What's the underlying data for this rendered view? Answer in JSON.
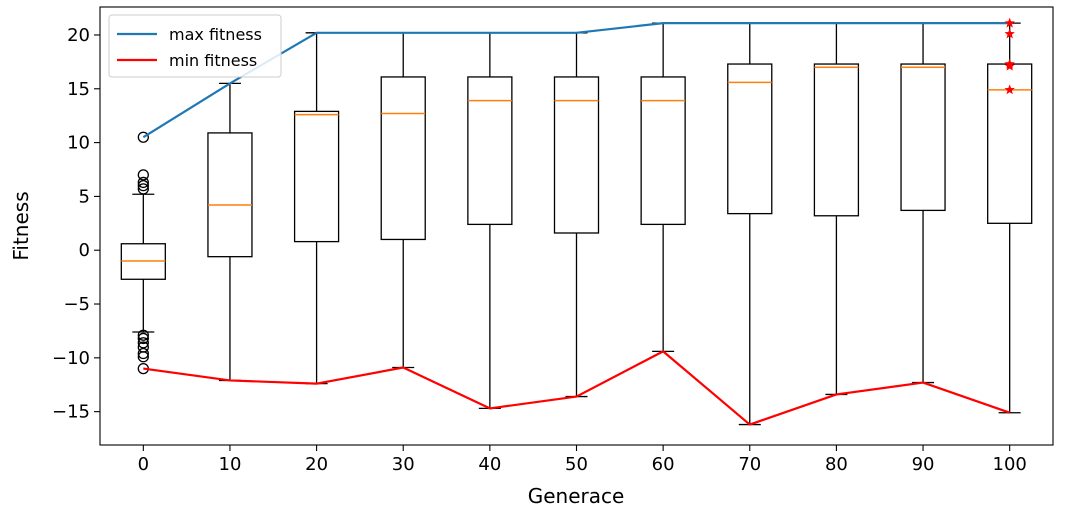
{
  "chart_data": {
    "type": "box",
    "xlabel": "Generace",
    "ylabel": "Fitness",
    "x_ticks": [
      "0",
      "10",
      "20",
      "30",
      "40",
      "50",
      "60",
      "70",
      "80",
      "90",
      "100"
    ],
    "y_ticks": [
      "−15",
      "−10",
      "−5",
      "0",
      "5",
      "10",
      "15",
      "20"
    ],
    "ylim": [
      -18.1,
      22.6
    ],
    "xlim": [
      -5,
      105
    ],
    "legend_position": "top-left",
    "boxes": [
      {
        "x": 0,
        "whisker_low": -7.6,
        "q1": -2.7,
        "median": -1.0,
        "q3": 0.6,
        "whisker_high": 5.2,
        "outliers": [
          -11.0,
          -9.9,
          -9.6,
          -9.0,
          -8.6,
          -8.2,
          -7.9,
          5.7,
          6.0,
          6.3,
          7.0,
          10.5
        ]
      },
      {
        "x": 10,
        "whisker_low": -12.1,
        "q1": -0.6,
        "median": 4.2,
        "q3": 10.9,
        "whisker_high": 15.5,
        "outliers": []
      },
      {
        "x": 20,
        "whisker_low": -12.4,
        "q1": 0.8,
        "median": 12.6,
        "q3": 12.9,
        "whisker_high": 20.2,
        "outliers": []
      },
      {
        "x": 30,
        "whisker_low": -10.9,
        "q1": 1.0,
        "median": 12.7,
        "q3": 16.1,
        "whisker_high": 20.2,
        "outliers": []
      },
      {
        "x": 40,
        "whisker_low": -14.7,
        "q1": 2.4,
        "median": 13.9,
        "q3": 16.1,
        "whisker_high": 20.2,
        "outliers": []
      },
      {
        "x": 50,
        "whisker_low": -13.6,
        "q1": 1.6,
        "median": 13.9,
        "q3": 16.1,
        "whisker_high": 20.2,
        "outliers": []
      },
      {
        "x": 60,
        "whisker_low": -9.4,
        "q1": 2.4,
        "median": 13.9,
        "q3": 16.1,
        "whisker_high": 21.1,
        "outliers": []
      },
      {
        "x": 70,
        "whisker_low": -16.2,
        "q1": 3.4,
        "median": 15.6,
        "q3": 17.3,
        "whisker_high": 21.1,
        "outliers": []
      },
      {
        "x": 80,
        "whisker_low": -13.4,
        "q1": 3.2,
        "median": 17.0,
        "q3": 17.3,
        "whisker_high": 21.1,
        "outliers": []
      },
      {
        "x": 90,
        "whisker_low": -12.3,
        "q1": 3.7,
        "median": 17.0,
        "q3": 17.3,
        "whisker_high": 21.1,
        "outliers": []
      },
      {
        "x": 100,
        "whisker_low": -15.1,
        "q1": 2.5,
        "median": 14.9,
        "q3": 17.3,
        "whisker_high": 21.1,
        "outliers": []
      }
    ],
    "star_markers": {
      "x": 100,
      "values": [
        21.1,
        20.1,
        17.3,
        17.1,
        14.9
      ]
    },
    "series": [
      {
        "name": "max fitness",
        "color": "#1f77b4",
        "x": [
          0,
          10,
          20,
          30,
          40,
          50,
          60,
          70,
          80,
          90,
          100
        ],
        "values": [
          10.5,
          15.5,
          20.2,
          20.2,
          20.2,
          20.2,
          21.1,
          21.1,
          21.1,
          21.1,
          21.1
        ]
      },
      {
        "name": "min fitness",
        "color": "#ff0000",
        "x": [
          0,
          10,
          20,
          30,
          40,
          50,
          60,
          70,
          80,
          90,
          100
        ],
        "values": [
          -11.0,
          -12.1,
          -12.4,
          -10.9,
          -14.7,
          -13.6,
          -9.4,
          -16.2,
          -13.4,
          -12.3,
          -15.1
        ]
      }
    ],
    "colors": {
      "box": "#000000",
      "median": "#ff7f0e",
      "stars": "#ff0000"
    }
  }
}
